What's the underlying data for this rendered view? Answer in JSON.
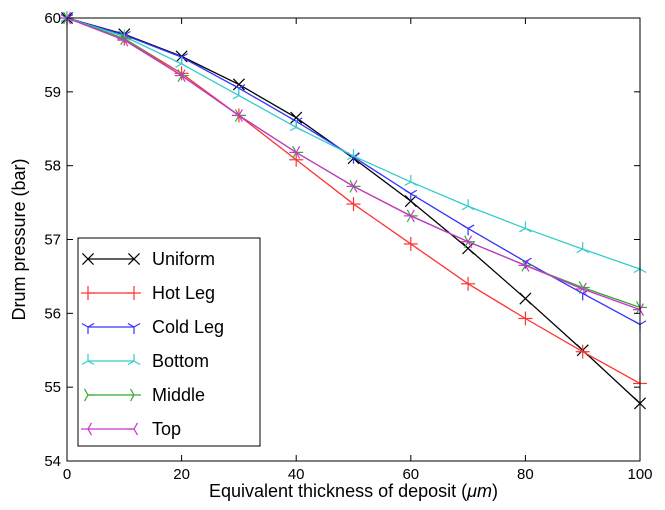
{
  "chart_data": {
    "type": "line",
    "title": "",
    "xlabel": "Equivalent thickness of deposit (",
    "xlabel_unit": "μm",
    "xlabel_close": ")",
    "ylabel": "Drum pressure (bar)",
    "xlim": [
      0,
      100
    ],
    "ylim": [
      54,
      60
    ],
    "xticks": [
      "0",
      "20",
      "40",
      "60",
      "80",
      "100"
    ],
    "yticks": [
      "54",
      "55",
      "56",
      "57",
      "58",
      "59",
      "60"
    ],
    "grid": false,
    "legend_position": "lower-left",
    "series": [
      {
        "name": "Uniform",
        "color": "#000000",
        "marker": "x",
        "x": [
          0,
          10,
          20,
          30,
          40,
          50,
          60,
          70,
          80,
          90,
          100
        ],
        "y": [
          60.0,
          59.78,
          59.48,
          59.1,
          58.65,
          58.1,
          57.52,
          56.88,
          56.2,
          55.5,
          54.78
        ]
      },
      {
        "name": "Hot Leg",
        "color": "#ff3333",
        "marker": "plus",
        "x": [
          0,
          10,
          20,
          30,
          40,
          50,
          60,
          70,
          80,
          90,
          100
        ],
        "y": [
          60.0,
          59.72,
          59.25,
          58.68,
          58.08,
          57.48,
          56.94,
          56.4,
          55.93,
          55.48,
          55.05
        ]
      },
      {
        "name": "Cold Leg",
        "color": "#3333ff",
        "marker": "tri_down",
        "x": [
          0,
          10,
          20,
          30,
          40,
          50,
          60,
          70,
          80,
          90,
          100
        ],
        "y": [
          60.0,
          59.77,
          59.47,
          59.05,
          58.6,
          58.12,
          57.62,
          57.15,
          56.7,
          56.27,
          55.85
        ]
      },
      {
        "name": "Bottom",
        "color": "#33cccc",
        "marker": "tri_up",
        "x": [
          0,
          10,
          20,
          30,
          40,
          50,
          60,
          70,
          80,
          90,
          100
        ],
        "y": [
          60.0,
          59.75,
          59.38,
          58.95,
          58.52,
          58.13,
          57.78,
          57.45,
          57.15,
          56.87,
          56.6
        ]
      },
      {
        "name": "Middle",
        "color": "#33aa33",
        "marker": "tri_right",
        "x": [
          0,
          10,
          20,
          30,
          40,
          50,
          60,
          70,
          80,
          90,
          100
        ],
        "y": [
          60.0,
          59.72,
          59.22,
          58.68,
          58.18,
          57.72,
          57.32,
          56.97,
          56.65,
          56.35,
          56.08
        ]
      },
      {
        "name": "Top",
        "color": "#cc33cc",
        "marker": "tri_left",
        "x": [
          0,
          10,
          20,
          30,
          40,
          50,
          60,
          70,
          80,
          90,
          100
        ],
        "y": [
          60.0,
          59.7,
          59.22,
          58.68,
          58.18,
          57.72,
          57.32,
          56.97,
          56.65,
          56.33,
          56.05
        ]
      }
    ]
  }
}
